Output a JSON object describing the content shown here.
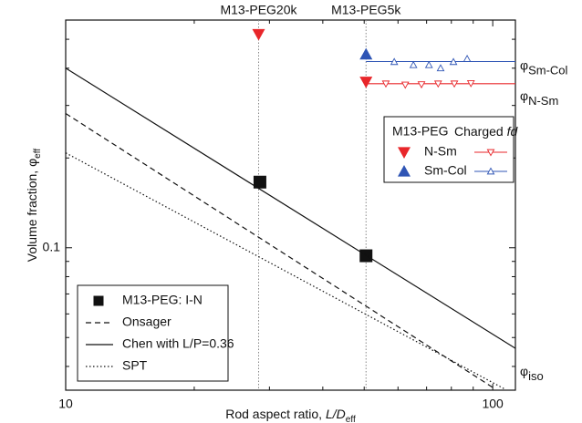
{
  "chart_data": {
    "type": "scatter",
    "xscale": "log",
    "yscale": "log",
    "xlabel": {
      "text": "Rod aspect ratio, ",
      "italic": "L/D",
      "sub": "eff"
    },
    "ylabel": {
      "text": "Volume fraction, ",
      "symbol": "φ",
      "sub": "eff"
    },
    "xlim": [
      10,
      113
    ],
    "ylim": [
      0.0333,
      0.58
    ],
    "xticks": [
      10,
      100
    ],
    "yticks": [
      0.1
    ],
    "xminor": [
      20,
      30,
      40,
      50,
      60,
      70,
      80,
      90
    ],
    "yminor": [
      0.04,
      0.05,
      0.06,
      0.07,
      0.08,
      0.09,
      0.2,
      0.3,
      0.4,
      0.5
    ],
    "annotations": [
      {
        "text": "M13-PEG20k",
        "x": 28.3
      },
      {
        "text": "M13-PEG5k",
        "x": 50.5
      }
    ],
    "legend_header": [
      "M13-PEG",
      {
        "text": "Charged ",
        "italic": "fd"
      }
    ],
    "series": [
      {
        "name": "M13-PEG: I-N",
        "color": "#111111",
        "marker": "square",
        "x": [
          28.5,
          50.5
        ],
        "values": [
          0.166,
          0.094
        ],
        "legend": "lower-left"
      },
      {
        "name": "Onsager",
        "color": "#111111",
        "line": "dashed",
        "x": [
          10,
          100
        ],
        "values": [
          0.282,
          0.034
        ],
        "legend": "lower-left"
      },
      {
        "name": "Chen with L/P=0.36",
        "color": "#111111",
        "line": "solid",
        "x": [
          10,
          113
        ],
        "values": [
          0.4,
          0.046
        ],
        "legend": "lower-left",
        "end_label": {
          "symbol": "φ",
          "sub": "iso"
        }
      },
      {
        "name": "SPT",
        "color": "#111111",
        "line": "dotted",
        "x": [
          10,
          107
        ],
        "values": [
          0.208,
          0.0335
        ],
        "legend": "lower-left"
      },
      {
        "name": "N-Sm",
        "color": "#e8262a",
        "marker": "triangle-down",
        "x": [
          28.3,
          50.5
        ],
        "values": [
          0.52,
          0.36
        ],
        "legend": "upper-right"
      },
      {
        "name": "Sm-Col",
        "color": "#2f55b5",
        "marker": "triangle-up",
        "x": [
          50.5
        ],
        "values": [
          0.445
        ],
        "legend": "upper-right"
      },
      {
        "color": "#e8262a",
        "marker": "open-triangle-down",
        "x": [
          56.2,
          62.4,
          68.1,
          74.5,
          81.3,
          88.9
        ],
        "values": [
          0.355,
          0.352,
          0.353,
          0.355,
          0.355,
          0.356
        ],
        "legend": "upper-right",
        "fit": {
          "x": [
            50.5,
            113
          ],
          "values": [
            0.355,
            0.355
          ]
        },
        "end_label": {
          "symbol": "φ",
          "sub": "N-Sm"
        }
      },
      {
        "color": "#2f55b5",
        "marker": "open-triangle-up",
        "x": [
          58.8,
          65.2,
          70.9,
          75.5,
          80.9,
          87.1
        ],
        "values": [
          0.42,
          0.41,
          0.41,
          0.4,
          0.42,
          0.43
        ],
        "legend": "upper-right",
        "fit": {
          "x": [
            50.5,
            113
          ],
          "values": [
            0.421,
            0.421
          ]
        },
        "end_label": {
          "symbol": "φ",
          "sub": "Sm-Col"
        }
      }
    ]
  }
}
